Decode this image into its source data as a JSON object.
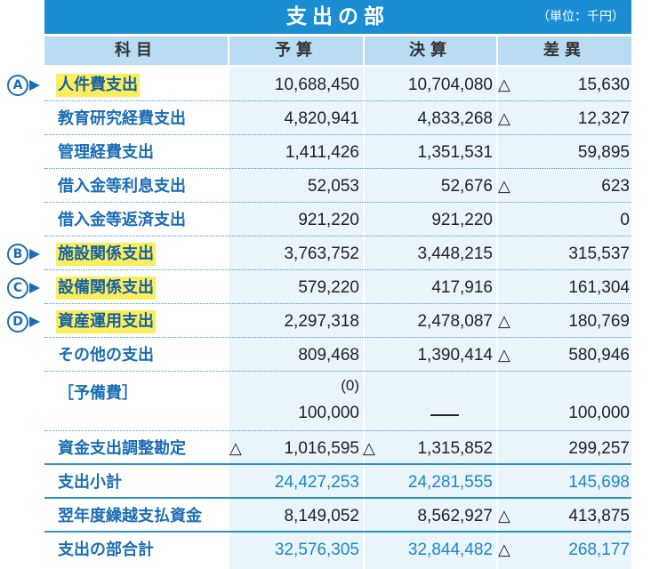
{
  "header": {
    "title": "支出の部",
    "unit": "（単位：千円）",
    "columns": [
      "科目",
      "予算",
      "決算",
      "差異"
    ]
  },
  "rows": [
    {
      "label": "人件費支出",
      "yosan": "10,688,450",
      "kessan": "10,704,080",
      "sai": "15,630",
      "sai_neg": true,
      "marker": "A",
      "highlight": true
    },
    {
      "label": "教育研究経費支出",
      "yosan": "4,820,941",
      "kessan": "4,833,268",
      "sai": "12,327",
      "sai_neg": true
    },
    {
      "label": "管理経費支出",
      "yosan": "1,411,426",
      "kessan": "1,351,531",
      "sai": "59,895"
    },
    {
      "label": "借入金等利息支出",
      "yosan": "52,053",
      "kessan": "52,676",
      "sai": "623",
      "sai_neg": true
    },
    {
      "label": "借入金等返済支出",
      "yosan": "921,220",
      "kessan": "921,220",
      "sai": "0"
    },
    {
      "label": "施設関係支出",
      "yosan": "3,763,752",
      "kessan": "3,448,215",
      "sai": "315,537",
      "marker": "B",
      "highlight": true
    },
    {
      "label": "設備関係支出",
      "yosan": "579,220",
      "kessan": "417,916",
      "sai": "161,304",
      "marker": "C",
      "highlight": true
    },
    {
      "label": "資産運用支出",
      "yosan": "2,297,318",
      "kessan": "2,478,087",
      "sai": "180,769",
      "sai_neg": true,
      "marker": "D",
      "highlight": true
    },
    {
      "label": "その他の支出",
      "yosan": "809,468",
      "kessan": "1,390,414",
      "sai": "580,946",
      "sai_neg": true
    },
    {
      "label": "［予備費］",
      "yosan_paren": "(0)",
      "yosan": "100,000",
      "kessan": "—",
      "sai": "100,000",
      "tall": true
    },
    {
      "label": "資金支出調整勘定",
      "yosan": "1,016,595",
      "yosan_neg": true,
      "kessan": "1,315,852",
      "kessan_neg": true,
      "sai": "299,257",
      "solid": true
    },
    {
      "label": "支出小計",
      "yosan": "24,427,253",
      "kessan": "24,281,555",
      "sai": "145,698",
      "blue": true,
      "solid": true
    },
    {
      "label": "翌年度繰越支払資金",
      "yosan": "8,149,052",
      "kessan": "8,562,927",
      "sai": "413,875",
      "sai_neg": true,
      "solid": true
    },
    {
      "label": "支出の部合計",
      "yosan": "32,576,305",
      "kessan": "32,844,482",
      "sai": "268,177",
      "sai_neg": true,
      "blue": true,
      "last": true
    }
  ],
  "neg_symbol": "△",
  "colors": {
    "header_bg": "#1b8ed3",
    "colhead_bg": "#b9dcf3",
    "label": "#1a6db5",
    "highlight": "#fbee5a",
    "total": "#1a86cf"
  }
}
